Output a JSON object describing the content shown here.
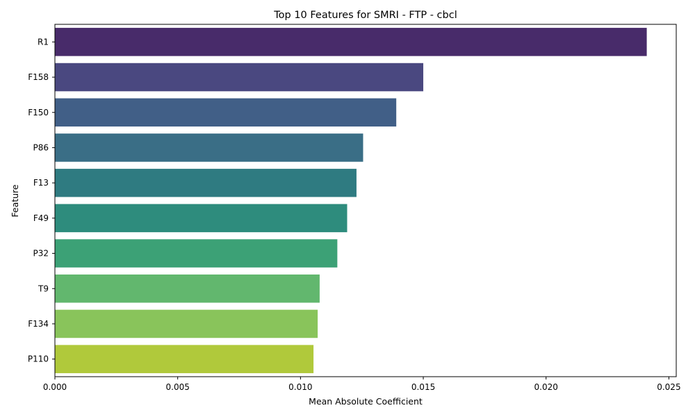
{
  "chart_data": {
    "type": "bar",
    "orientation": "horizontal",
    "title": "Top 10 Features for SMRI - FTP - cbcl",
    "xlabel": "Mean Absolute Coefficient",
    "ylabel": "Feature",
    "categories": [
      "R1",
      "F158",
      "F150",
      "P86",
      "F13",
      "F49",
      "P32",
      "T9",
      "F134",
      "P110"
    ],
    "values": [
      0.0241,
      0.015,
      0.0139,
      0.01255,
      0.01228,
      0.0119,
      0.0115,
      0.01078,
      0.0107,
      0.01053
    ],
    "xlim": [
      0,
      0.0253
    ],
    "xticks": [
      0.0,
      0.005,
      0.01,
      0.015,
      0.02,
      0.025
    ],
    "xtick_labels": [
      "0.000",
      "0.005",
      "0.010",
      "0.015",
      "0.020",
      "0.025"
    ],
    "colors": [
      "#482b6a",
      "#4a4880",
      "#415f87",
      "#3a6e86",
      "#2f7b81",
      "#2e8c7d",
      "#3ca176",
      "#62b76e",
      "#89c45b",
      "#b0c93b"
    ],
    "grid": false,
    "legend": "none"
  }
}
